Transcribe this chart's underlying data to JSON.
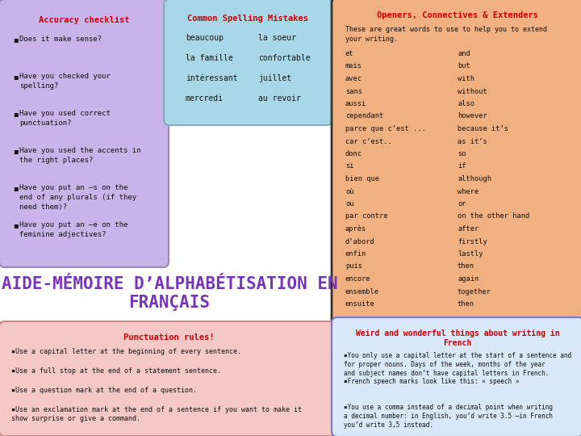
{
  "bg_color": "#ffffff",
  "accuracy_bg": "#c8b4e8",
  "accuracy_title": "Accuracy checklist",
  "accuracy_items": [
    "Does it make sense?",
    "Have you checked your\nspelling?",
    "Have you used correct\npunctuation?",
    "Have you used the accents in\nthe right places?",
    "Have you put an –s on the\nend of any plurals (if they\nneed them)?",
    "Have you put an –e on the\nfeminine adjectives?"
  ],
  "spelling_bg": "#a8d8e8",
  "spelling_title": "Common Spelling Mistakes",
  "spelling_words": [
    [
      "beaucoup",
      "la soeur"
    ],
    [
      "la famille",
      "confortable"
    ],
    [
      "intéressant",
      "juillet"
    ],
    [
      "mercredi",
      "au revoir"
    ]
  ],
  "openers_bg": "#f0b080",
  "openers_title": "Openers, Connectives & Extenders",
  "openers_subtitle": "These are great words to use to help you to extend\nyour writing.",
  "openers_pairs": [
    [
      "et",
      "and"
    ],
    [
      "mais",
      "but"
    ],
    [
      "avec",
      "with"
    ],
    [
      "sans",
      "without"
    ],
    [
      "aussi",
      "also"
    ],
    [
      "cependant",
      "however"
    ],
    [
      "parce que c’est ...",
      "because it’s"
    ],
    [
      "car c’est..",
      "as it’s"
    ],
    [
      "donc",
      "so"
    ],
    [
      "si",
      "if"
    ],
    [
      "bien que",
      "although"
    ],
    [
      "où",
      "where"
    ],
    [
      "ou",
      "or"
    ],
    [
      "par contre",
      "on the other hand"
    ],
    [
      "après",
      "after"
    ],
    [
      "d’abord",
      "firstly"
    ],
    [
      "enfin",
      "lastly"
    ],
    [
      "puis",
      "then"
    ],
    [
      "encore",
      "again"
    ],
    [
      "ensemble",
      "together"
    ],
    [
      "ensuite",
      "then"
    ]
  ],
  "punct_bg": "#f5c8c8",
  "punct_title": "Punctuation rules!",
  "punct_items": [
    "▪Use a capital letter at the beginning of every sentence.",
    "▪Use a full stop at the end of a statement sentence.",
    "▪Use a question mark at the end of a question.",
    "▪Use an exclamation mark at the end of a sentence if you want to make it\nshow surprise or give a command."
  ],
  "weird_bg": "#d8e8f8",
  "weird_title": "Weird and wonderful things about writing in\nFrench",
  "weird_items": [
    "▪You only use a capital letter at the start of a sentence and\nfor proper nouns. Days of the week, months of the year\nand subject names don’t have capital letters in French.",
    "▪French speech marks look like this: « speech »",
    "▪You use a comma instead of a decimal point when writing\na decimal number: in English, you’d write 3.5 –in French\nyou’d write 3,5 instead."
  ],
  "red_color": "#cc0000",
  "dark_color": "#111111",
  "purple_title_color": "#7733bb",
  "main_title_line1": "AIDE-MÉMOIRE D’ALPHABÉTISATION EN",
  "main_title_line2": "FRANÇAIS"
}
